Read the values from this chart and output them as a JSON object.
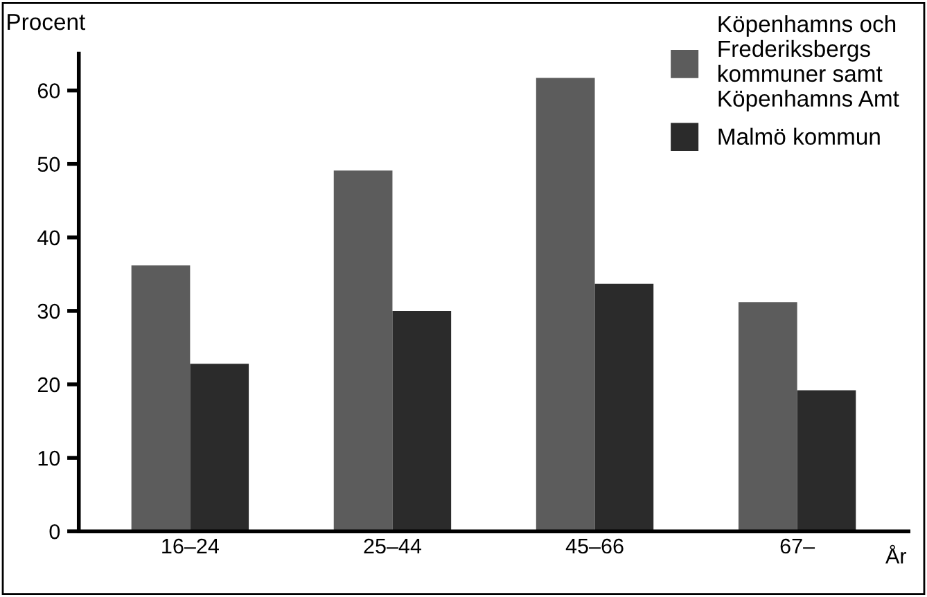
{
  "chart_data": {
    "type": "bar",
    "ylabel": "Procent",
    "xlabel": "År",
    "categories": [
      "16–24",
      "25–44",
      "45–66",
      "67–"
    ],
    "series": [
      {
        "name": "Köpenhamns och\nFrederiksbergs\nkommuner samt\nKöpenhamns Amt",
        "color": "#5c5c5c",
        "values": [
          36.2,
          49.1,
          61.7,
          31.2
        ]
      },
      {
        "name": "Malmö kommun",
        "color": "#2b2b2b",
        "values": [
          22.8,
          30,
          33.7,
          19.2
        ]
      }
    ],
    "ylim": [
      0,
      65
    ],
    "yticks": [
      0,
      10,
      20,
      30,
      40,
      50,
      60
    ],
    "grid": false,
    "legend": "top right"
  }
}
